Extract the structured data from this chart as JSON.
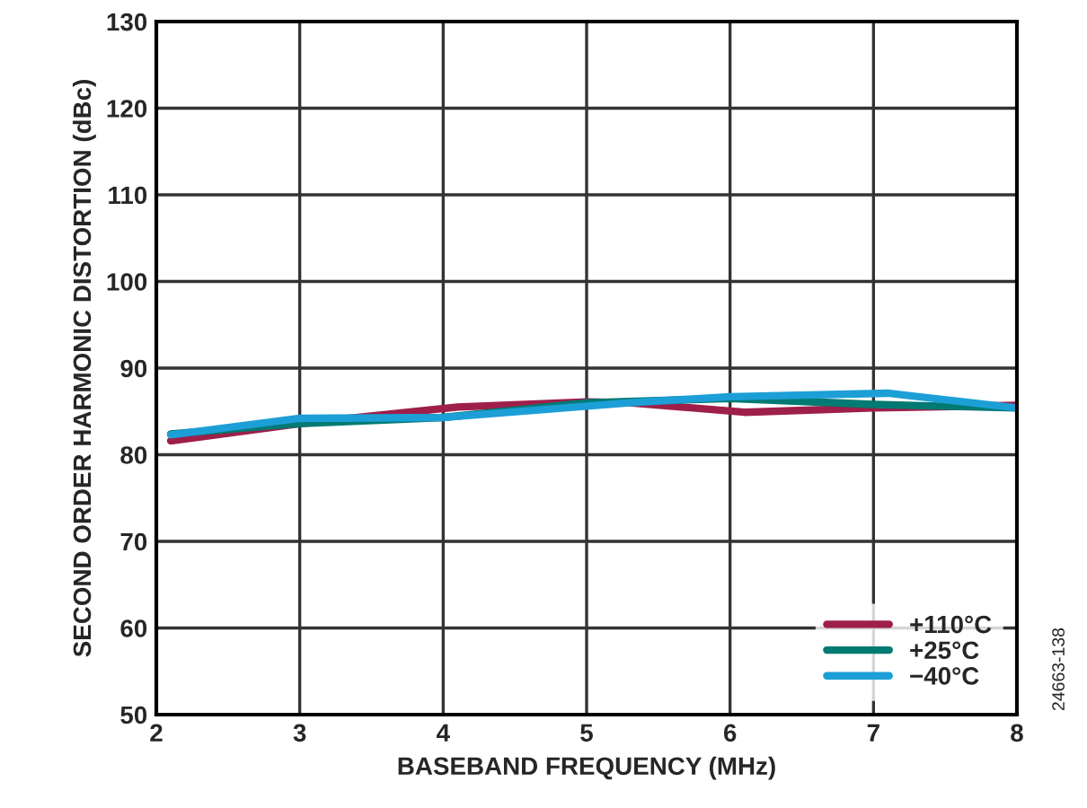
{
  "chart_data": {
    "type": "line",
    "xlabel": "BASEBAND FREQUENCY (MHz)",
    "ylabel": "SECOND ORDER HARMONIC DISTORTION (dBc)",
    "xlim": [
      2,
      8
    ],
    "xticks": [
      2,
      3,
      4,
      5,
      6,
      7,
      8
    ],
    "ylim": [
      50,
      130
    ],
    "yticks": [
      50,
      60,
      70,
      80,
      90,
      100,
      110,
      120,
      130
    ],
    "grid": true,
    "legend": "bottom right",
    "marker": "none",
    "line_style": "solid",
    "annotations": [
      "24663-138"
    ],
    "series": [
      {
        "name": "+110°C",
        "color": "#9e1f4a",
        "x": [
          2.1,
          3,
          4.1,
          5,
          5.3,
          6.1,
          7,
          8
        ],
        "values": [
          81.6,
          83.6,
          85.5,
          86.1,
          86.0,
          84.9,
          85.4,
          85.7
        ]
      },
      {
        "name": "+25°C",
        "color": "#007a73",
        "x": [
          2.1,
          3,
          4,
          5,
          6,
          7,
          8
        ],
        "values": [
          82.4,
          83.6,
          84.3,
          86.0,
          86.5,
          85.8,
          85.4
        ]
      },
      {
        "name": "−40°C",
        "color": "#1c9fd6",
        "x": [
          2.1,
          3,
          4,
          5.3,
          6,
          7.1,
          8
        ],
        "values": [
          82.3,
          84.2,
          84.3,
          86.0,
          86.7,
          87.1,
          85.4
        ]
      }
    ]
  }
}
